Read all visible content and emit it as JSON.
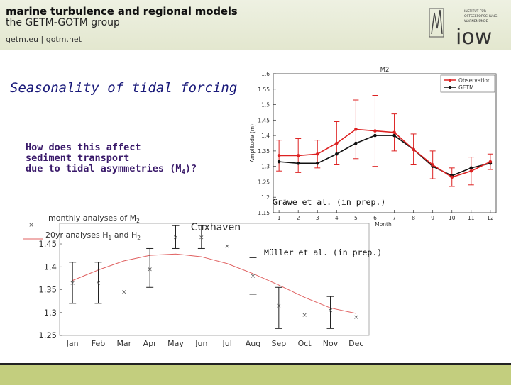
{
  "header": {
    "title": "marine turbulence and regional models",
    "subtitle": "the GETM-GOTM group",
    "links": "getm.eu  |  gotm.net",
    "logo_text": "iow",
    "logo_small_lines": [
      "INSTITUT FÜR",
      "OSTSEEFORSCHUNG",
      "WARNEMÜNDE"
    ]
  },
  "slide": {
    "heading": "Seasonality of tidal forcing",
    "question_lines": [
      "How does this affect",
      "sediment transport",
      "due to tidal asymmetries (M"
    ],
    "question_sub": "4",
    "question_tail": ")?",
    "citation_top": "Gräwe et al. (in prep.)",
    "citation_bottom": "Müller et al. (in prep.)"
  },
  "colors": {
    "observation": "#dd2222",
    "getm": "#111111",
    "fit_line": "#e06060",
    "footer": "#c3ce7e",
    "heading": "#1a1a7a"
  },
  "chart_data": [
    {
      "type": "line",
      "title": "M2",
      "xlabel": "Month",
      "ylabel": "Amplitude (m)",
      "x": [
        1,
        2,
        3,
        4,
        5,
        6,
        7,
        8,
        9,
        10,
        11,
        12
      ],
      "xlim": [
        0.7,
        12.3
      ],
      "ylim": [
        1.15,
        1.6
      ],
      "yticks": [
        1.15,
        1.2,
        1.25,
        1.3,
        1.35,
        1.4,
        1.45,
        1.5,
        1.55,
        1.6
      ],
      "ytick_labels": [
        "1.15",
        "1.2",
        "1.25",
        "1.3",
        "1.35",
        "1.4",
        "1.45",
        "1.5",
        "1.55",
        "1.6"
      ],
      "xtick_labels": [
        "1",
        "2",
        "3",
        "4",
        "5",
        "6",
        "7",
        "8",
        "9",
        "10",
        "11",
        "12"
      ],
      "legend_position": "top-right",
      "series": [
        {
          "name": "Observation",
          "values": [
            1.335,
            1.335,
            1.34,
            1.375,
            1.42,
            1.415,
            1.41,
            1.355,
            1.305,
            1.265,
            1.285,
            1.315
          ],
          "err": [
            0.05,
            0.055,
            0.045,
            0.07,
            0.095,
            0.115,
            0.06,
            0.05,
            0.045,
            0.03,
            0.045,
            0.025
          ]
        },
        {
          "name": "GETM",
          "values": [
            1.315,
            1.31,
            1.31,
            1.34,
            1.375,
            1.4,
            1.4,
            1.355,
            1.3,
            1.27,
            1.295,
            1.31
          ],
          "err": [
            0,
            0,
            0,
            0,
            0,
            0,
            0,
            0,
            0,
            0,
            0,
            0
          ]
        }
      ]
    },
    {
      "type": "scatter",
      "title": "Cuxhaven",
      "legend": [
        "monthly analyses of M",
        "20yr analyses H",
        "and H"
      ],
      "legend_subs": [
        "2",
        "1",
        "2"
      ],
      "categories": [
        "Jan",
        "Feb",
        "Mar",
        "Apr",
        "May",
        "Jun",
        "Jul",
        "Aug",
        "Sep",
        "Oct",
        "Nov",
        "Dec"
      ],
      "yticks": [
        1.25,
        1.3,
        1.35,
        1.4,
        1.45
      ],
      "ytick_labels": [
        "1.25",
        "1.3",
        "1.35",
        "1.4",
        "1.45"
      ],
      "ylim": [
        1.25,
        1.495
      ],
      "monthly": [
        1.365,
        1.365,
        1.345,
        1.395,
        1.465,
        1.465,
        1.445,
        1.38,
        1.315,
        1.295,
        1.305,
        1.29
      ],
      "err_low": [
        1.32,
        1.32,
        null,
        1.355,
        1.44,
        1.44,
        null,
        1.34,
        1.265,
        null,
        1.265,
        null
      ],
      "err_high": [
        1.41,
        1.41,
        null,
        1.44,
        1.49,
        1.49,
        null,
        1.42,
        1.355,
        null,
        1.335,
        null
      ],
      "fit": [
        1.37,
        1.393,
        1.413,
        1.425,
        1.428,
        1.422,
        1.407,
        1.385,
        1.36,
        1.333,
        1.31,
        1.298
      ]
    }
  ]
}
